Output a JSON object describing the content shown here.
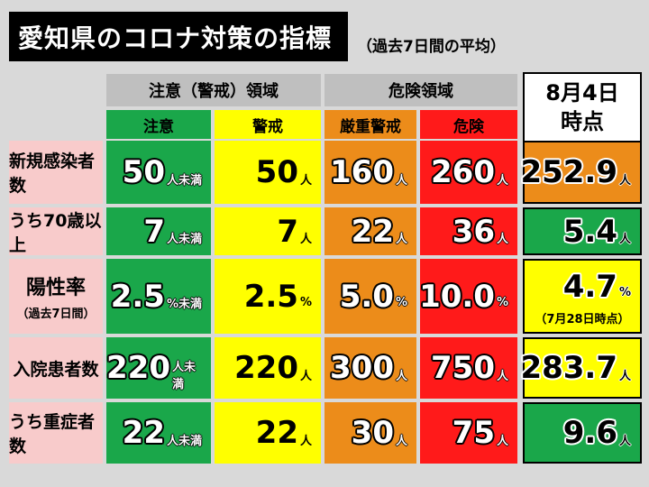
{
  "title": "愛知県のコロナ対策の指標",
  "subtitle": "（過去7日間の平均）",
  "group_headers": {
    "caution": "注意（警戒）領域",
    "danger": "危険領域"
  },
  "date_header": {
    "line1": "8月4日",
    "line2": "時点"
  },
  "columns": [
    "注意",
    "警戒",
    "厳重警戒",
    "危険"
  ],
  "colors": {
    "green": "#1aa74a",
    "yellow": "#ffff00",
    "orange": "#ec8c1a",
    "red": "#ff1a1a",
    "header_gray": "#bfbfbf",
    "row_pink": "#f8cbcb"
  },
  "rows": [
    {
      "label": "新規感染者数",
      "sub": "",
      "cells": [
        {
          "v": "50",
          "u": "人未満"
        },
        {
          "v": "50",
          "u": "人"
        },
        {
          "v": "160",
          "u": "人"
        },
        {
          "v": "260",
          "u": "人"
        }
      ],
      "current": {
        "v": "252.9",
        "u": "人",
        "level": "orange"
      },
      "note": ""
    },
    {
      "label": "うち70歳以上",
      "sub": "",
      "cells": [
        {
          "v": "7",
          "u": "人未満"
        },
        {
          "v": "7",
          "u": "人"
        },
        {
          "v": "22",
          "u": "人"
        },
        {
          "v": "36",
          "u": "人"
        }
      ],
      "current": {
        "v": "5.4",
        "u": "人",
        "level": "green"
      },
      "note": ""
    },
    {
      "label": "陽性率",
      "sub": "（過去7日間）",
      "cells": [
        {
          "v": "2.5",
          "u": "%未満"
        },
        {
          "v": "2.5",
          "u": "%"
        },
        {
          "v": "5.0",
          "u": "%"
        },
        {
          "v": "10.0",
          "u": "%"
        }
      ],
      "current": {
        "v": "4.7",
        "u": "%",
        "level": "yellow"
      },
      "note": "（7月28日時点）"
    },
    {
      "label": "入院患者数",
      "sub": "",
      "cells": [
        {
          "v": "220",
          "u": "人未満"
        },
        {
          "v": "220",
          "u": "人"
        },
        {
          "v": "300",
          "u": "人"
        },
        {
          "v": "750",
          "u": "人"
        }
      ],
      "current": {
        "v": "283.7",
        "u": "人",
        "level": "yellow"
      },
      "note": ""
    },
    {
      "label": "うち重症者数",
      "sub": "",
      "cells": [
        {
          "v": "22",
          "u": "人未満"
        },
        {
          "v": "22",
          "u": "人"
        },
        {
          "v": "30",
          "u": "人"
        },
        {
          "v": "75",
          "u": "人"
        }
      ],
      "current": {
        "v": "9.6",
        "u": "人",
        "level": "green"
      },
      "note": ""
    }
  ]
}
